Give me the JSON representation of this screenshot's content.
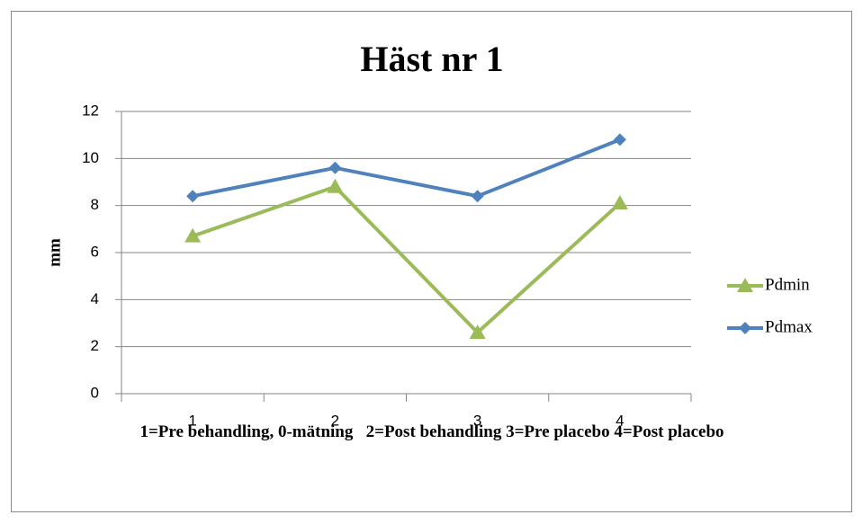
{
  "chart_data": {
    "type": "line",
    "title": "Häst nr 1",
    "x_label": "1=Pre behandling, 0-mätning   2=Post behandling 3=Pre placebo 4=Post placebo",
    "y_label": "mm",
    "categories": [
      "1",
      "2",
      "3",
      "4"
    ],
    "series": [
      {
        "name": "Pdmin",
        "color": "#9bbb59",
        "marker": "triangle",
        "values": [
          6.7,
          8.8,
          2.6,
          8.1
        ]
      },
      {
        "name": "Pdmax",
        "color": "#4f81bd",
        "marker": "diamond",
        "values": [
          8.4,
          9.6,
          8.4,
          10.8
        ]
      }
    ],
    "ylim": [
      0,
      12
    ],
    "yticks": [
      0,
      2,
      4,
      6,
      8,
      10,
      12
    ],
    "grid": true,
    "legend": "right"
  }
}
